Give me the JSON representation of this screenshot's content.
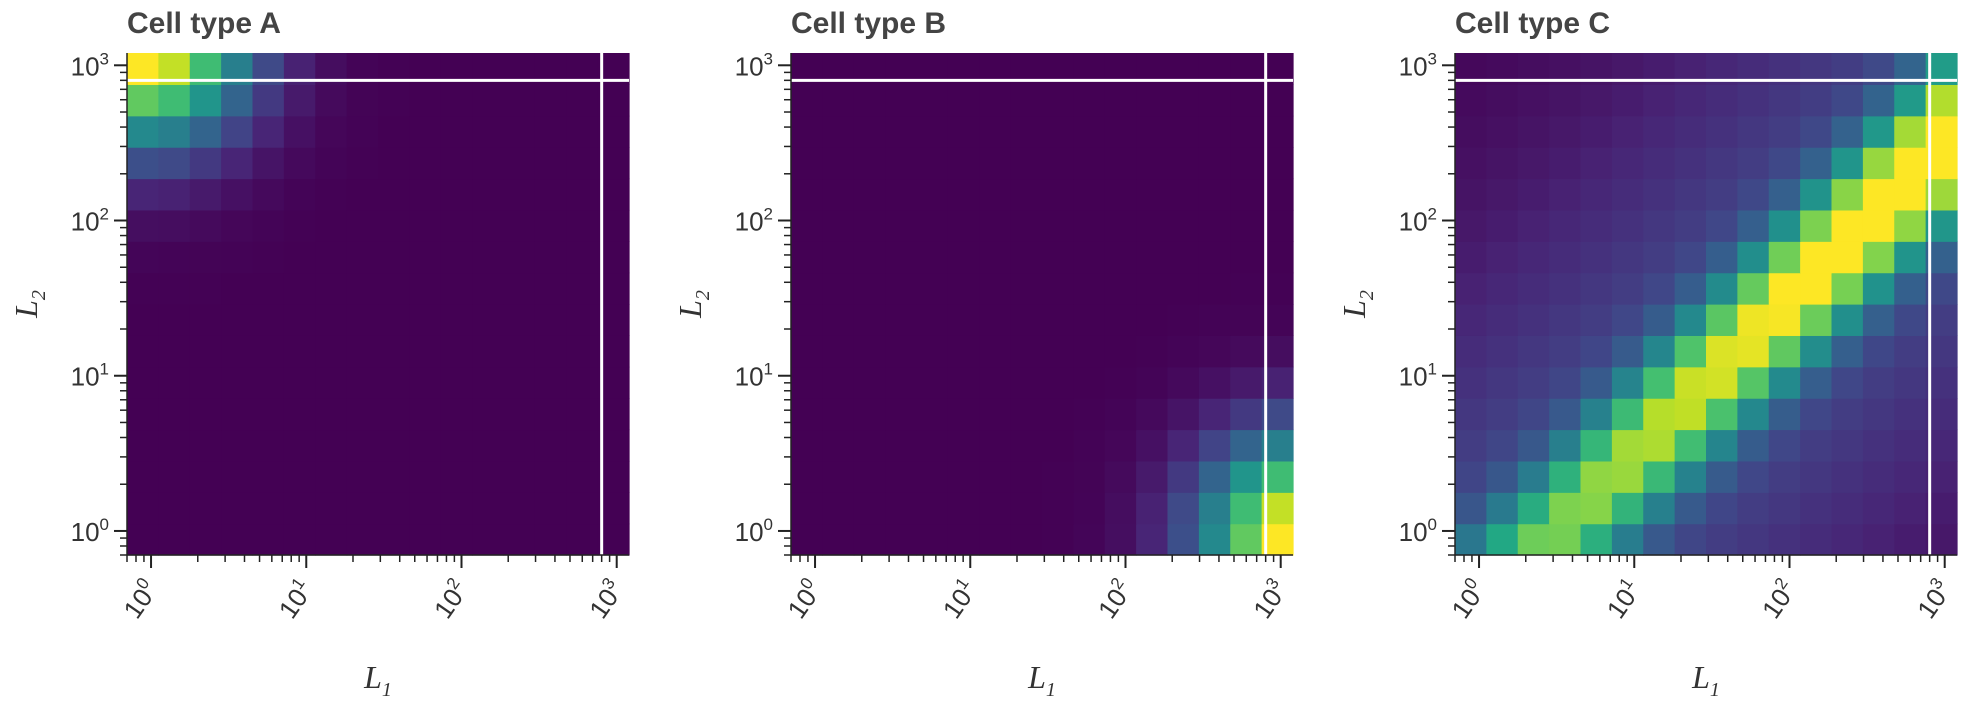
{
  "chart_data": [
    {
      "type": "heatmap",
      "title": "Cell type A",
      "xlabel": "L",
      "xlabel_sub": "1",
      "ylabel": "L",
      "ylabel_sub": "2",
      "x_scale": "log",
      "y_scale": "log",
      "xlim": [
        0.7,
        1200
      ],
      "ylim": [
        0.7,
        1200
      ],
      "x_tick_labels": [
        {
          "base": "10",
          "exp": "0"
        },
        {
          "base": "10",
          "exp": "1"
        },
        {
          "base": "10",
          "exp": "2"
        },
        {
          "base": "10",
          "exp": "3"
        }
      ],
      "y_tick_labels": [
        {
          "base": "10",
          "exp": "0"
        },
        {
          "base": "10",
          "exp": "1"
        },
        {
          "base": "10",
          "exp": "2"
        },
        {
          "base": "10",
          "exp": "3"
        }
      ],
      "reference_lines": {
        "vertical_x": 800,
        "horizontal_y": 800,
        "color": "#ffffff"
      },
      "colormap": "viridis",
      "grid": false,
      "model": {
        "kind": "corner",
        "center_x": 0,
        "center_y": 16,
        "sigma": 2.3
      },
      "grid_size": 16
    },
    {
      "type": "heatmap",
      "title": "Cell type B",
      "xlabel": "L",
      "xlabel_sub": "1",
      "ylabel": "L",
      "ylabel_sub": "2",
      "x_scale": "log",
      "y_scale": "log",
      "xlim": [
        0.7,
        1200
      ],
      "ylim": [
        0.7,
        1200
      ],
      "x_tick_labels": [
        {
          "base": "10",
          "exp": "0"
        },
        {
          "base": "10",
          "exp": "1"
        },
        {
          "base": "10",
          "exp": "2"
        },
        {
          "base": "10",
          "exp": "3"
        }
      ],
      "y_tick_labels": [
        {
          "base": "10",
          "exp": "0"
        },
        {
          "base": "10",
          "exp": "1"
        },
        {
          "base": "10",
          "exp": "2"
        },
        {
          "base": "10",
          "exp": "3"
        }
      ],
      "reference_lines": {
        "vertical_x": 800,
        "horizontal_y": 800,
        "color": "#ffffff"
      },
      "colormap": "viridis",
      "grid": false,
      "model": {
        "kind": "corner",
        "center_x": 16,
        "center_y": 0,
        "sigma": 2.3
      },
      "grid_size": 16
    },
    {
      "type": "heatmap",
      "title": "Cell type C",
      "xlabel": "L",
      "xlabel_sub": "1",
      "ylabel": "L",
      "ylabel_sub": "2",
      "x_scale": "log",
      "y_scale": "log",
      "xlim": [
        0.7,
        1200
      ],
      "ylim": [
        0.7,
        1200
      ],
      "x_tick_labels": [
        {
          "base": "10",
          "exp": "0"
        },
        {
          "base": "10",
          "exp": "1"
        },
        {
          "base": "10",
          "exp": "2"
        },
        {
          "base": "10",
          "exp": "3"
        }
      ],
      "y_tick_labels": [
        {
          "base": "10",
          "exp": "0"
        },
        {
          "base": "10",
          "exp": "1"
        },
        {
          "base": "10",
          "exp": "2"
        },
        {
          "base": "10",
          "exp": "3"
        }
      ],
      "reference_lines": {
        "vertical_x": 800,
        "horizontal_y": 800,
        "color": "#ffffff"
      },
      "colormap": "viridis",
      "grid": false,
      "model": {
        "kind": "diagonal",
        "offset": 2.5,
        "width": 1.7,
        "background_sigma": 8.0
      },
      "grid_size": 16
    }
  ]
}
